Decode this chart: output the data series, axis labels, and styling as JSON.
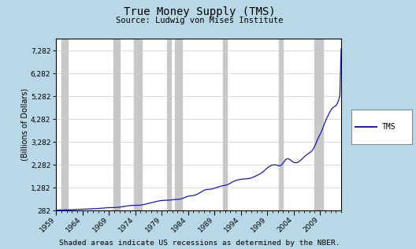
{
  "title": "True Money Supply (TMS)",
  "subtitle": "Source: Ludwig von Mises Institute",
  "xlabel_note": "Shaded areas indicate US recessions as determined by the NBER.",
  "ylabel": "(Billions of Dollars)",
  "legend_label": "TMS",
  "background_outer": "#b8d8e8",
  "background_inner": "#ffffff",
  "recession_color": "#c8c8c8",
  "line_color": "#1a1aaa",
  "yticks": [
    282,
    1282,
    2282,
    3282,
    4282,
    5282,
    6282,
    7282
  ],
  "ylim_min": 282,
  "ylim_max": 7800,
  "xlim_start": 1959,
  "xlim_end": 2013,
  "xtick_years": [
    1959,
    1964,
    1969,
    1974,
    1979,
    1984,
    1989,
    1994,
    1999,
    2004,
    2009
  ],
  "recessions": [
    [
      1960.0,
      1961.2
    ],
    [
      1969.8,
      1971.0
    ],
    [
      1973.8,
      1975.2
    ],
    [
      1980.0,
      1980.7
    ],
    [
      1981.5,
      1982.9
    ],
    [
      1990.6,
      1991.3
    ],
    [
      2001.2,
      2001.9
    ],
    [
      2007.9,
      2009.6
    ]
  ],
  "tms_data": [
    [
      1959.0,
      295
    ],
    [
      1959.25,
      296
    ],
    [
      1959.5,
      297
    ],
    [
      1959.75,
      298
    ],
    [
      1960.0,
      299
    ],
    [
      1960.25,
      300
    ],
    [
      1960.5,
      300
    ],
    [
      1960.75,
      301
    ],
    [
      1961.0,
      303
    ],
    [
      1961.25,
      305
    ],
    [
      1961.5,
      307
    ],
    [
      1961.75,
      309
    ],
    [
      1962.0,
      312
    ],
    [
      1962.25,
      314
    ],
    [
      1962.5,
      316
    ],
    [
      1962.75,
      318
    ],
    [
      1963.0,
      321
    ],
    [
      1963.25,
      324
    ],
    [
      1963.5,
      327
    ],
    [
      1963.75,
      330
    ],
    [
      1964.0,
      333
    ],
    [
      1964.25,
      337
    ],
    [
      1964.5,
      341
    ],
    [
      1964.75,
      345
    ],
    [
      1965.0,
      349
    ],
    [
      1965.25,
      353
    ],
    [
      1965.5,
      357
    ],
    [
      1965.75,
      360
    ],
    [
      1966.0,
      362
    ],
    [
      1966.25,
      363
    ],
    [
      1966.5,
      363
    ],
    [
      1966.75,
      364
    ],
    [
      1967.0,
      367
    ],
    [
      1967.25,
      371
    ],
    [
      1967.5,
      375
    ],
    [
      1967.75,
      380
    ],
    [
      1968.0,
      386
    ],
    [
      1968.25,
      391
    ],
    [
      1968.5,
      396
    ],
    [
      1968.75,
      400
    ],
    [
      1969.0,
      403
    ],
    [
      1969.25,
      404
    ],
    [
      1969.5,
      404
    ],
    [
      1969.75,
      404
    ],
    [
      1970.0,
      406
    ],
    [
      1970.25,
      409
    ],
    [
      1970.5,
      413
    ],
    [
      1970.75,
      418
    ],
    [
      1971.0,
      425
    ],
    [
      1971.25,
      433
    ],
    [
      1971.5,
      442
    ],
    [
      1971.75,
      451
    ],
    [
      1972.0,
      461
    ],
    [
      1972.25,
      471
    ],
    [
      1972.5,
      480
    ],
    [
      1972.75,
      489
    ],
    [
      1973.0,
      496
    ],
    [
      1973.25,
      501
    ],
    [
      1973.5,
      503
    ],
    [
      1973.75,
      504
    ],
    [
      1974.0,
      505
    ],
    [
      1974.25,
      505
    ],
    [
      1974.5,
      506
    ],
    [
      1974.75,
      509
    ],
    [
      1975.0,
      515
    ],
    [
      1975.25,
      524
    ],
    [
      1975.5,
      535
    ],
    [
      1975.75,
      548
    ],
    [
      1976.0,
      562
    ],
    [
      1976.25,
      576
    ],
    [
      1976.5,
      590
    ],
    [
      1976.75,
      603
    ],
    [
      1977.0,
      617
    ],
    [
      1977.25,
      632
    ],
    [
      1977.5,
      647
    ],
    [
      1977.75,
      662
    ],
    [
      1978.0,
      676
    ],
    [
      1978.25,
      689
    ],
    [
      1978.5,
      700
    ],
    [
      1978.75,
      709
    ],
    [
      1979.0,
      716
    ],
    [
      1979.25,
      721
    ],
    [
      1979.5,
      724
    ],
    [
      1979.75,
      726
    ],
    [
      1980.0,
      728
    ],
    [
      1980.25,
      730
    ],
    [
      1980.5,
      733
    ],
    [
      1980.75,
      738
    ],
    [
      1981.0,
      745
    ],
    [
      1981.25,
      752
    ],
    [
      1981.5,
      758
    ],
    [
      1981.75,
      761
    ],
    [
      1982.0,
      764
    ],
    [
      1982.25,
      769
    ],
    [
      1982.5,
      778
    ],
    [
      1982.75,
      793
    ],
    [
      1983.0,
      812
    ],
    [
      1983.25,
      838
    ],
    [
      1983.5,
      864
    ],
    [
      1983.75,
      886
    ],
    [
      1984.0,
      903
    ],
    [
      1984.25,
      914
    ],
    [
      1984.5,
      920
    ],
    [
      1984.75,
      924
    ],
    [
      1985.0,
      932
    ],
    [
      1985.25,
      946
    ],
    [
      1985.5,
      966
    ],
    [
      1985.75,
      992
    ],
    [
      1986.0,
      1022
    ],
    [
      1986.25,
      1057
    ],
    [
      1986.5,
      1094
    ],
    [
      1986.75,
      1130
    ],
    [
      1987.0,
      1161
    ],
    [
      1987.25,
      1183
    ],
    [
      1987.5,
      1196
    ],
    [
      1987.75,
      1200
    ],
    [
      1988.0,
      1203
    ],
    [
      1988.25,
      1210
    ],
    [
      1988.5,
      1220
    ],
    [
      1988.75,
      1235
    ],
    [
      1989.0,
      1253
    ],
    [
      1989.25,
      1273
    ],
    [
      1989.5,
      1293
    ],
    [
      1989.75,
      1313
    ],
    [
      1990.0,
      1332
    ],
    [
      1990.25,
      1349
    ],
    [
      1990.5,
      1361
    ],
    [
      1990.75,
      1369
    ],
    [
      1991.0,
      1378
    ],
    [
      1991.25,
      1392
    ],
    [
      1991.5,
      1413
    ],
    [
      1991.75,
      1441
    ],
    [
      1992.0,
      1474
    ],
    [
      1992.25,
      1507
    ],
    [
      1992.5,
      1538
    ],
    [
      1992.75,
      1564
    ],
    [
      1993.0,
      1587
    ],
    [
      1993.25,
      1606
    ],
    [
      1993.5,
      1621
    ],
    [
      1993.75,
      1633
    ],
    [
      1994.0,
      1643
    ],
    [
      1994.25,
      1651
    ],
    [
      1994.5,
      1657
    ],
    [
      1994.75,
      1661
    ],
    [
      1995.0,
      1665
    ],
    [
      1995.25,
      1670
    ],
    [
      1995.5,
      1678
    ],
    [
      1995.75,
      1690
    ],
    [
      1996.0,
      1706
    ],
    [
      1996.25,
      1727
    ],
    [
      1996.5,
      1752
    ],
    [
      1996.75,
      1779
    ],
    [
      1997.0,
      1807
    ],
    [
      1997.25,
      1835
    ],
    [
      1997.5,
      1864
    ],
    [
      1997.75,
      1896
    ],
    [
      1998.0,
      1936
    ],
    [
      1998.25,
      1984
    ],
    [
      1998.5,
      2037
    ],
    [
      1998.75,
      2089
    ],
    [
      1999.0,
      2138
    ],
    [
      1999.25,
      2181
    ],
    [
      1999.5,
      2217
    ],
    [
      1999.75,
      2246
    ],
    [
      2000.0,
      2267
    ],
    [
      2000.25,
      2278
    ],
    [
      2000.5,
      2278
    ],
    [
      2000.75,
      2267
    ],
    [
      2001.0,
      2248
    ],
    [
      2001.25,
      2234
    ],
    [
      2001.5,
      2241
    ],
    [
      2001.75,
      2280
    ],
    [
      2002.0,
      2348
    ],
    [
      2002.25,
      2433
    ],
    [
      2002.5,
      2505
    ],
    [
      2002.75,
      2540
    ],
    [
      2003.0,
      2542
    ],
    [
      2003.25,
      2516
    ],
    [
      2003.5,
      2474
    ],
    [
      2003.75,
      2427
    ],
    [
      2004.0,
      2389
    ],
    [
      2004.25,
      2368
    ],
    [
      2004.5,
      2367
    ],
    [
      2004.75,
      2384
    ],
    [
      2005.0,
      2416
    ],
    [
      2005.25,
      2460
    ],
    [
      2005.5,
      2512
    ],
    [
      2005.75,
      2568
    ],
    [
      2006.0,
      2624
    ],
    [
      2006.25,
      2676
    ],
    [
      2006.5,
      2722
    ],
    [
      2006.75,
      2762
    ],
    [
      2007.0,
      2800
    ],
    [
      2007.25,
      2842
    ],
    [
      2007.5,
      2899
    ],
    [
      2007.75,
      2981
    ],
    [
      2008.0,
      3094
    ],
    [
      2008.25,
      3231
    ],
    [
      2008.5,
      3368
    ],
    [
      2008.75,
      3484
    ],
    [
      2009.0,
      3594
    ],
    [
      2009.25,
      3723
    ],
    [
      2009.5,
      3875
    ],
    [
      2009.75,
      4028
    ],
    [
      2010.0,
      4172
    ],
    [
      2010.25,
      4303
    ],
    [
      2010.5,
      4424
    ],
    [
      2010.75,
      4538
    ],
    [
      2011.0,
      4644
    ],
    [
      2011.25,
      4729
    ],
    [
      2011.5,
      4790
    ],
    [
      2011.75,
      4826
    ],
    [
      2012.0,
      4861
    ],
    [
      2012.25,
      4950
    ],
    [
      2012.5,
      5090
    ],
    [
      2012.75,
      5280
    ],
    [
      2013.0,
      7350
    ]
  ]
}
